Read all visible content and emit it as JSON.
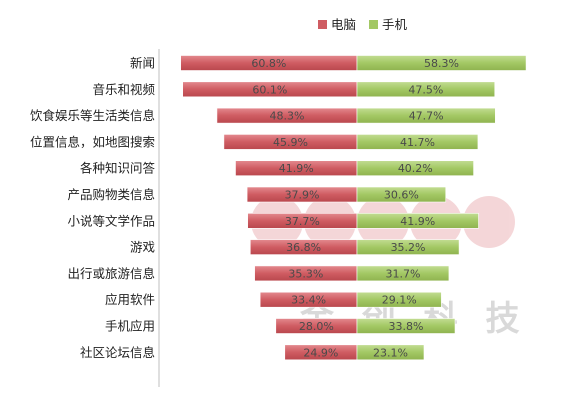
{
  "chart_data": {
    "type": "bar",
    "orientation": "horizontal-butterfly",
    "categories": [
      "新闻",
      "音乐和视频",
      "饮食娱乐等生活类信息",
      "位置信息，如地图搜索",
      "各种知识问答",
      "产品购物类信息",
      "小说等文学作品",
      "游戏",
      "出行或旅游信息",
      "应用软件",
      "手机应用",
      "社区论坛信息"
    ],
    "series": [
      {
        "name": "电脑",
        "color": "#cf5c62",
        "side": "left",
        "values": [
          60.8,
          60.1,
          48.3,
          45.9,
          41.9,
          37.9,
          37.7,
          36.8,
          35.3,
          33.4,
          28.0,
          24.9
        ],
        "labels": [
          "60.8%",
          "60.1%",
          "48.3%",
          "45.9%",
          "41.9%",
          "37.9%",
          "37.7%",
          "36.8%",
          "35.3%",
          "33.4%",
          "28.0%",
          "24.9%"
        ]
      },
      {
        "name": "手机",
        "color": "#a3c864",
        "side": "right",
        "values": [
          58.3,
          47.5,
          47.7,
          41.7,
          40.2,
          30.6,
          41.9,
          35.2,
          31.7,
          29.1,
          33.8,
          23.1
        ],
        "labels": [
          "58.3%",
          "47.5%",
          "47.7%",
          "41.7%",
          "40.2%",
          "30.6%",
          "41.9%",
          "35.2%",
          "31.7%",
          "29.1%",
          "33.8%",
          "23.1%"
        ]
      }
    ],
    "unit": "%",
    "legend_position": "top-right",
    "grid": false
  },
  "watermark": {
    "text": "金 创 科 技",
    "logo_color": "#e8a6aa"
  }
}
